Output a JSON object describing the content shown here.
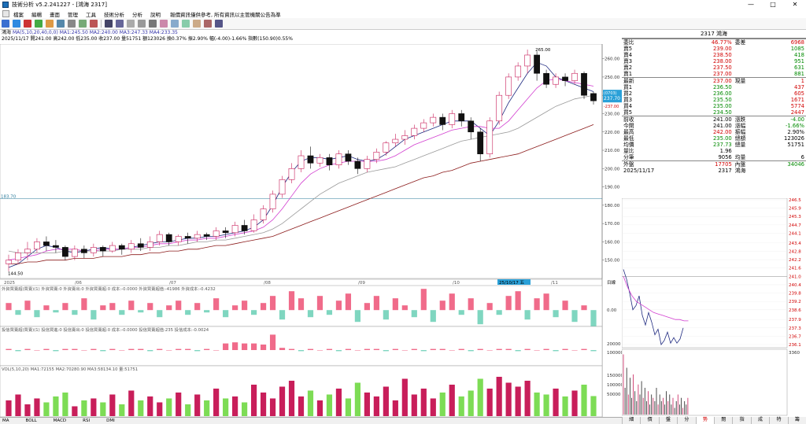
{
  "window": {
    "title": "技術分析 v5.2.241227 - [鴻海 2317]"
  },
  "menu": {
    "items": [
      "檔案",
      "編輯",
      "畫面",
      "管理",
      "工具",
      "技術分析",
      "分析",
      "說明"
    ],
    "notice": "報價資訊僅供參考, 所有資訊以主管機關公告為準"
  },
  "info": {
    "line1_name": "鴻海",
    "line1_ma": "MA(5,10,20,40,0,0) MA1:245.50 MA2:240.00 MA3:247.33 MA4:233.35",
    "line2": "2025/11/17 開241.00 高242.00 低235.00 收237.00 量51751 額123026 換0.37% 振2.90% 幅(-4.00)-1.66% 指數(150.90)0.55%"
  },
  "price_panel": {
    "y_ticks": [
      "260.00",
      "250.00",
      "240.00",
      "230.00",
      "220.00",
      "210.00",
      "200.00",
      "190.00",
      "180.00",
      "170.00",
      "160.00",
      "150.00"
    ],
    "current_box": [
      "(0703)",
      "237.70",
      "-237.00"
    ],
    "left_mark": "183.70",
    "high_label": "265.00",
    "low_label": "144.50",
    "x_labels": [
      "2025",
      "/06",
      "/07",
      "/08",
      "/09",
      "/10",
      "/11"
    ],
    "date_highlight": "25/10/17 五",
    "right_corner": "日線",
    "ma": [
      {
        "name": "MA5",
        "color": "#1f2a80",
        "values": [
          146,
          148,
          152,
          156,
          158,
          157,
          155,
          154,
          155,
          156,
          157,
          156,
          156,
          157,
          158,
          159,
          160,
          160,
          161,
          162,
          162,
          163,
          163,
          164,
          165,
          166,
          168,
          172,
          180,
          190,
          198,
          204,
          206,
          206,
          205,
          206,
          207,
          205,
          204,
          205,
          208,
          212,
          216,
          218,
          220,
          222,
          224,
          226,
          226,
          226,
          222,
          218,
          226,
          236,
          244,
          252,
          258,
          256,
          250,
          248,
          246,
          244,
          242
        ]
      },
      {
        "name": "MA10",
        "color": "#d23ed0",
        "values": [
          150,
          151,
          152,
          153,
          155,
          156,
          156,
          156,
          155,
          155,
          156,
          156,
          156,
          157,
          157,
          158,
          159,
          159,
          160,
          161,
          161,
          162,
          162,
          163,
          164,
          165,
          166,
          168,
          172,
          178,
          185,
          192,
          197,
          200,
          202,
          203,
          204,
          204,
          204,
          204,
          205,
          207,
          210,
          213,
          215,
          217,
          219,
          221,
          222,
          223,
          223,
          222,
          222,
          226,
          232,
          238,
          244,
          248,
          249,
          248,
          247,
          246,
          245
        ]
      },
      {
        "name": "MA20",
        "color": "#9a9a9a",
        "values": [
          155,
          154,
          154,
          154,
          154,
          154,
          155,
          155,
          155,
          155,
          155,
          155,
          156,
          156,
          156,
          157,
          157,
          158,
          158,
          159,
          160,
          160,
          161,
          161,
          162,
          163,
          164,
          165,
          167,
          170,
          174,
          178,
          182,
          186,
          189,
          192,
          194,
          196,
          198,
          199,
          200,
          201,
          203,
          205,
          207,
          209,
          211,
          213,
          215,
          216,
          217,
          218,
          219,
          220,
          222,
          225,
          228,
          231,
          234,
          236,
          238,
          239,
          240
        ]
      },
      {
        "name": "MA40",
        "color": "#8b1a1a",
        "values": [
          148,
          148,
          149,
          149,
          150,
          150,
          150,
          151,
          151,
          151,
          152,
          152,
          152,
          153,
          153,
          154,
          154,
          155,
          155,
          156,
          156,
          157,
          158,
          158,
          159,
          160,
          161,
          162,
          163,
          165,
          167,
          169,
          171,
          173,
          175,
          177,
          179,
          181,
          183,
          185,
          187,
          189,
          191,
          193,
          195,
          196,
          198,
          199,
          201,
          203,
          204,
          205,
          206,
          207,
          208,
          210,
          212,
          214,
          216,
          218,
          220,
          222,
          224
        ]
      }
    ],
    "candles": [
      [
        148,
        150,
        144,
        153
      ],
      [
        150,
        154,
        148,
        156
      ],
      [
        154,
        156,
        150,
        160
      ],
      [
        156,
        160,
        154,
        162
      ],
      [
        160,
        158,
        155,
        163
      ],
      [
        158,
        157,
        154,
        161
      ],
      [
        157,
        152,
        150,
        158
      ],
      [
        152,
        156,
        150,
        158
      ],
      [
        156,
        154,
        151,
        158
      ],
      [
        154,
        157,
        152,
        159
      ],
      [
        157,
        155,
        152,
        158
      ],
      [
        155,
        158,
        154,
        160
      ],
      [
        158,
        156,
        153,
        159
      ],
      [
        156,
        159,
        154,
        161
      ],
      [
        159,
        157,
        155,
        162
      ],
      [
        157,
        160,
        155,
        163
      ],
      [
        160,
        164,
        158,
        166
      ],
      [
        164,
        160,
        158,
        165
      ],
      [
        160,
        163,
        158,
        164
      ],
      [
        163,
        162,
        159,
        165
      ],
      [
        162,
        164,
        160,
        166
      ],
      [
        164,
        163,
        161,
        165
      ],
      [
        163,
        166,
        161,
        168
      ],
      [
        166,
        165,
        162,
        168
      ],
      [
        165,
        169,
        163,
        171
      ],
      [
        169,
        166,
        164,
        172
      ],
      [
        166,
        172,
        165,
        175
      ],
      [
        172,
        178,
        170,
        180
      ],
      [
        178,
        186,
        176,
        188
      ],
      [
        186,
        194,
        184,
        196
      ],
      [
        194,
        200,
        192,
        203
      ],
      [
        200,
        207,
        198,
        210
      ],
      [
        207,
        203,
        200,
        212
      ],
      [
        203,
        206,
        201,
        208
      ],
      [
        206,
        202,
        199,
        208
      ],
      [
        202,
        208,
        200,
        210
      ],
      [
        208,
        204,
        202,
        210
      ],
      [
        204,
        200,
        197,
        206
      ],
      [
        200,
        205,
        198,
        207
      ],
      [
        205,
        209,
        203,
        211
      ],
      [
        209,
        214,
        207,
        215
      ],
      [
        214,
        216,
        212,
        219
      ],
      [
        216,
        218,
        213,
        221
      ],
      [
        218,
        222,
        216,
        224
      ],
      [
        222,
        225,
        220,
        227
      ],
      [
        225,
        228,
        223,
        230
      ],
      [
        228,
        224,
        221,
        230
      ],
      [
        224,
        230,
        222,
        232
      ],
      [
        230,
        226,
        223,
        232
      ],
      [
        226,
        220,
        216,
        228
      ],
      [
        220,
        208,
        204,
        222
      ],
      [
        208,
        226,
        206,
        228
      ],
      [
        226,
        240,
        224,
        242
      ],
      [
        240,
        250,
        238,
        252
      ],
      [
        250,
        256,
        248,
        258
      ],
      [
        256,
        262,
        252,
        265
      ],
      [
        262,
        252,
        248,
        264
      ],
      [
        252,
        246,
        244,
        254
      ],
      [
        246,
        250,
        244,
        252
      ],
      [
        250,
        248,
        245,
        252
      ],
      [
        248,
        252,
        246,
        254
      ],
      [
        252,
        240,
        238,
        253
      ],
      [
        241,
        237,
        235,
        242
      ]
    ]
  },
  "foreign_panel": {
    "legend": "外資買賣超(買賣)(1) 外資買賣:0 外資賣出:0 外資買賣超:0 成本:-0.0000 外資買賣超值:-41986 外資成本:-0.4232",
    "y_tick": "0.00",
    "bars": [
      3,
      -2,
      4,
      -3,
      2,
      -1,
      3,
      -2,
      5,
      -4,
      2,
      3,
      -2,
      4,
      -1,
      3,
      -3,
      2,
      4,
      -2,
      3,
      -1,
      5,
      -3,
      2,
      4,
      -2,
      3,
      6,
      -4,
      8,
      5,
      -3,
      6,
      -2,
      4,
      7,
      -5,
      3,
      6,
      -4,
      5,
      2,
      -3,
      9,
      -5,
      4,
      7,
      -2,
      5,
      -6,
      3,
      -2,
      6,
      8,
      -4,
      5,
      7,
      -3,
      4,
      -5,
      2,
      -8
    ]
  },
  "trust_panel": {
    "legend": "投信買賣超(買賣)(1) 投信買進:0 投信賣出:0 投信買賣超:0 成本:-0.0000 投信買賣超值:235 投信成本:-0.0024",
    "y_ticks": [
      "20000",
      "100000"
    ],
    "bars": [
      1,
      -1,
      1,
      0,
      1,
      -1,
      1,
      1,
      0,
      1,
      -1,
      1,
      0,
      1,
      1,
      -1,
      1,
      0,
      1,
      1,
      -1,
      1,
      0,
      6,
      7,
      6,
      6,
      5,
      14,
      2,
      1,
      -1,
      1,
      0,
      1,
      -1,
      1,
      0,
      1,
      1,
      -1,
      1,
      0,
      1,
      -1,
      1,
      1,
      0,
      1,
      -1,
      1,
      0,
      1,
      1,
      -1,
      1,
      0,
      1,
      -1,
      1,
      0,
      1,
      -1
    ]
  },
  "vol_panel": {
    "legend": "VOL(5,10,20) MA1:72155 MA2:70280.90 MA3:58134.10 量:51751",
    "y_ticks": [
      "150000",
      "100000",
      "50000"
    ],
    "bars": [
      40,
      55,
      30,
      45,
      35,
      50,
      60,
      25,
      40,
      45,
      35,
      55,
      30,
      65,
      40,
      50,
      35,
      45,
      60,
      30,
      55,
      40,
      70,
      45,
      50,
      35,
      80,
      60,
      45,
      75,
      90,
      50,
      65,
      40,
      55,
      70,
      45,
      85,
      60,
      50,
      75,
      40,
      95,
      55,
      70,
      45,
      60,
      80,
      50,
      65,
      95,
      70,
      100,
      85,
      75,
      90,
      60,
      55,
      70,
      50,
      65,
      80,
      51
    ]
  },
  "quote": {
    "header": "2317 鴻海",
    "rows": [
      {
        "l": "委比",
        "lv": "46.77%",
        "m": "委差",
        "mv": "6968",
        "lc": "red",
        "mc": "red"
      },
      {
        "l": "賣5",
        "lv": "239.00",
        "m": "",
        "mv": "1085",
        "lc": "red",
        "mc": "grn"
      },
      {
        "l": "賣4",
        "lv": "238.50",
        "m": "",
        "mv": "418",
        "lc": "red",
        "mc": "grn"
      },
      {
        "l": "賣3",
        "lv": "238.00",
        "m": "",
        "mv": "951",
        "lc": "red",
        "mc": "grn"
      },
      {
        "l": "賣2",
        "lv": "237.50",
        "m": "",
        "mv": "631",
        "lc": "red",
        "mc": "grn"
      },
      {
        "l": "賣1",
        "lv": "237.00",
        "m": "",
        "mv": "881",
        "lc": "red",
        "mc": "grn"
      },
      {
        "l": "最新",
        "lv": "237.00",
        "m": "現量",
        "mv": "1",
        "lc": "red",
        "mc": "red"
      },
      {
        "l": "買1",
        "lv": "236.50",
        "m": "",
        "mv": "437",
        "lc": "grn",
        "mc": "red"
      },
      {
        "l": "買2",
        "lv": "236.00",
        "m": "",
        "mv": "605",
        "lc": "grn",
        "mc": "red"
      },
      {
        "l": "買3",
        "lv": "235.50",
        "m": "",
        "mv": "1671",
        "lc": "grn",
        "mc": "red"
      },
      {
        "l": "買4",
        "lv": "235.00",
        "m": "",
        "mv": "5774",
        "lc": "grn",
        "mc": "red"
      },
      {
        "l": "買5",
        "lv": "234.50",
        "m": "",
        "mv": "2447",
        "lc": "grn",
        "mc": "red"
      },
      {
        "l": "前收",
        "lv": "241.00",
        "m": "漲跌",
        "mv": "-4.00",
        "lc": "blk",
        "mc": "grn"
      },
      {
        "l": "今開",
        "lv": "241.00",
        "m": "漲幅",
        "mv": "-1.66%",
        "lc": "blk",
        "mc": "grn"
      },
      {
        "l": "最高",
        "lv": "242.00",
        "m": "振幅",
        "mv": "2.90%",
        "lc": "red",
        "mc": "blk"
      },
      {
        "l": "最低",
        "lv": "235.00",
        "m": "總額",
        "mv": "123026",
        "lc": "grn",
        "mc": "blk"
      },
      {
        "l": "均價",
        "lv": "237.73",
        "m": "總量",
        "mv": "51751",
        "lc": "grn",
        "mc": "blk"
      },
      {
        "l": "量比",
        "lv": "1.96",
        "m": "",
        "mv": "",
        "lc": "blk",
        "mc": "blk"
      },
      {
        "l": "分筆",
        "lv": "9056",
        "m": "均量",
        "mv": "6",
        "lc": "blk",
        "mc": "blk"
      },
      {
        "l": "外盤",
        "lv": "17705",
        "m": "內盤",
        "mv": "34046",
        "lc": "red",
        "mc": "grn"
      },
      {
        "l": "2025/11/17",
        "lv": "2317",
        "m": "鴻海",
        "mv": "",
        "lc": "blk",
        "mc": "blk"
      }
    ]
  },
  "tick": {
    "y_ticks": [
      "246.5",
      "245.9",
      "245.3",
      "244.7",
      "244.1",
      "243.4",
      "242.8",
      "242.2",
      "241.6",
      "241.0",
      "240.4",
      "239.8",
      "239.2",
      "238.6",
      "237.9",
      "237.3",
      "236.7",
      "236.1"
    ],
    "vol_tick": "3360",
    "price": [
      241.5,
      240.8,
      239.8,
      238.6,
      238.9,
      239.6,
      238.2,
      237.5,
      238.4,
      237.7,
      236.8,
      237.2,
      236.1,
      236.4,
      237.0,
      236.2,
      236.6,
      236.2,
      236.5,
      237.3
    ],
    "avg": [
      241.0,
      240.2,
      239.6,
      239.2,
      239.0,
      238.8,
      238.6,
      238.4,
      238.3,
      238.2,
      238.1,
      238.0,
      237.9,
      237.9,
      237.8,
      237.8
    ],
    "vols": [
      90,
      40,
      70,
      30,
      55,
      25,
      60,
      35,
      20,
      45,
      30,
      50,
      25,
      40,
      20,
      35,
      15,
      30,
      25,
      20,
      40,
      15,
      30,
      20,
      25,
      15,
      35,
      20,
      30,
      15,
      25,
      10,
      20,
      30,
      15,
      25,
      10,
      20,
      15,
      25
    ]
  },
  "bottom_tabs": [
    "MA",
    "BOLL",
    "MACD",
    "RSI",
    "DMI"
  ],
  "right_tabs": [
    {
      "label": "細",
      "on": false
    },
    {
      "label": "價",
      "on": false
    },
    {
      "label": "盤",
      "on": false
    },
    {
      "label": "分",
      "on": false
    },
    {
      "label": "勢",
      "on": true
    },
    {
      "label": "閱",
      "on": false
    },
    {
      "label": "指",
      "on": false
    },
    {
      "label": "成",
      "on": false
    },
    {
      "label": "特",
      "on": false
    },
    {
      "label": "籌",
      "on": false
    }
  ],
  "colors": {
    "up": "#c81e5a",
    "down": "#111111",
    "up_fill": "#ffffff",
    "foreign": "#f06b8a",
    "foreign_neg": "#7fd6c0",
    "vol_up": "#c81e5a",
    "vol_down": "#7ddc55"
  }
}
